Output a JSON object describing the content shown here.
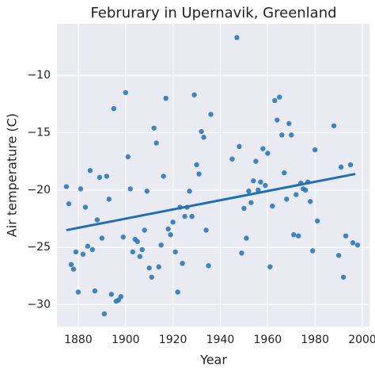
{
  "chart_data": {
    "type": "scatter",
    "title": "Februrary in Upernavik, Greenland",
    "xlabel": "Year",
    "ylabel": "Air temperature (C)",
    "series": [
      {
        "color": "#2e78b7",
        "x": [
          1875,
          1876,
          1877,
          1878,
          1879,
          1880,
          1881,
          1882,
          1883,
          1884,
          1885,
          1886,
          1887,
          1888,
          1889,
          1890,
          1891,
          1892,
          1893,
          1894,
          1895,
          1896,
          1897,
          1898,
          1899,
          1900,
          1901,
          1902,
          1903,
          1904,
          1905,
          1906,
          1907,
          1908,
          1909,
          1910,
          1911,
          1912,
          1913,
          1914,
          1915,
          1916,
          1917,
          1918,
          1919,
          1920,
          1921,
          1922,
          1923,
          1924,
          1925,
          1926,
          1927,
          1928,
          1929,
          1930,
          1931,
          1932,
          1933,
          1934,
          1935,
          1936,
          1945,
          1947,
          1948,
          1949,
          1950,
          1951,
          1952,
          1953,
          1954,
          1955,
          1956,
          1957,
          1958,
          1959,
          1960,
          1961,
          1962,
          1963,
          1964,
          1965,
          1966,
          1967,
          1968,
          1969,
          1970,
          1971,
          1972,
          1973,
          1974,
          1975,
          1976,
          1977,
          1978,
          1979,
          1980,
          1981,
          1988,
          1990,
          1991,
          1992,
          1993,
          1995,
          1996,
          1998
        ],
        "values": [
          -19.7,
          -21.2,
          -26.5,
          -26.9,
          -25.4,
          -28.9,
          -19.9,
          -25.6,
          -21.5,
          -24.9,
          -18.3,
          -25.2,
          -28.8,
          -22.6,
          -18.9,
          -24.2,
          -30.8,
          -18.8,
          -20.8,
          -29.1,
          -12.9,
          -29.7,
          -29.6,
          -29.3,
          -24.1,
          -11.5,
          -17.1,
          -19.9,
          -25.4,
          -24.3,
          -24.5,
          -25.8,
          -25.2,
          -23.5,
          -20.1,
          -26.8,
          -27.6,
          -14.6,
          -15.9,
          -26.7,
          -24.8,
          -18.8,
          -12.0,
          -23.4,
          -23.9,
          -22.8,
          -25.4,
          -28.9,
          -21.5,
          -26.4,
          -22.3,
          -21.5,
          -20.1,
          -22.3,
          -11.7,
          -17.8,
          -18.6,
          -14.9,
          -15.4,
          -23.5,
          -26.6,
          -13.4,
          -17.3,
          -6.7,
          -16.2,
          -25.5,
          -21.6,
          -24.2,
          -20.1,
          -21.1,
          -19.2,
          -17.5,
          -20.0,
          -19.3,
          -16.4,
          -19.6,
          -16.8,
          -26.7,
          -21.4,
          -12.2,
          -13.9,
          -11.9,
          -15.2,
          -18.5,
          -20.8,
          -14.2,
          -15.2,
          -23.9,
          -20.4,
          -24.0,
          -19.4,
          -19.9,
          -20.0,
          -19.3,
          -21.0,
          -25.3,
          -16.5,
          -22.7,
          -14.4,
          -25.7,
          -18.0,
          -27.6,
          -24.0,
          -17.8,
          -24.6,
          -24.8
        ]
      }
    ],
    "regression": {
      "color": "#1f6fb2",
      "x": [
        1875,
        1997
      ],
      "values": [
        -23.5,
        -18.6
      ]
    },
    "xlim": [
      1871,
      2003
    ],
    "ylim": [
      -31.9,
      -5.5
    ],
    "xticks": [
      1880,
      1900,
      1920,
      1940,
      1960,
      1980,
      2000
    ],
    "yticks": [
      {
        "value": -10,
        "label": "−10"
      },
      {
        "value": -15,
        "label": "−15"
      },
      {
        "value": -20,
        "label": "−20"
      },
      {
        "value": -25,
        "label": "−25"
      },
      {
        "value": -30,
        "label": "−30"
      }
    ],
    "grid": true
  }
}
